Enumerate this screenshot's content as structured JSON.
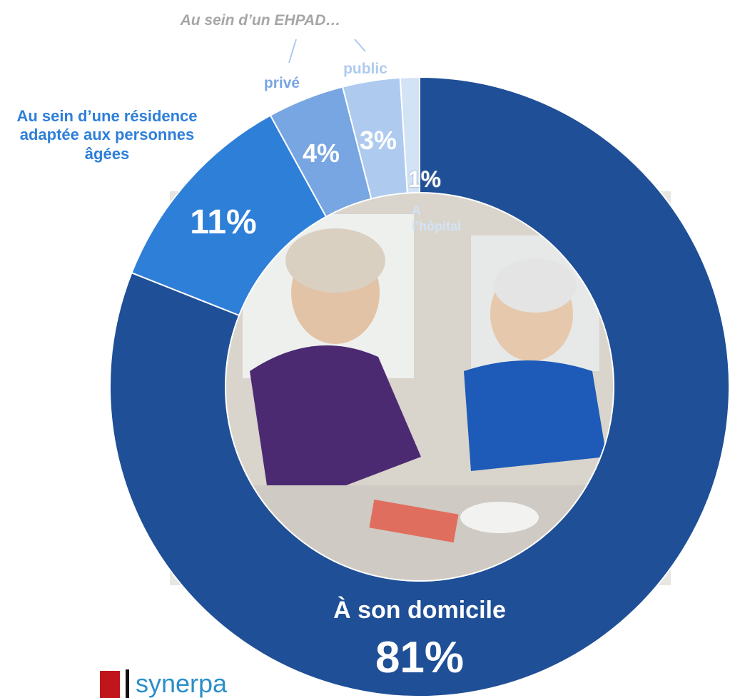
{
  "chart_data": {
    "type": "donut",
    "categories": [
      "À son domicile",
      "Au sein d’une résidence adaptée aux personnes âgées",
      "privé",
      "public",
      "A l’hôpital"
    ],
    "values": [
      81,
      11,
      4,
      3,
      1
    ],
    "value_labels": [
      "81%",
      "11%",
      "4%",
      "3%",
      "1%"
    ],
    "colors": [
      "#1f4f96",
      "#2e7fd8",
      "#78a6e2",
      "#aecbef",
      "#d3e3f6"
    ],
    "annotation": "Au sein d’un EHPAD…"
  },
  "footer": {
    "logo": "synerpa"
  }
}
